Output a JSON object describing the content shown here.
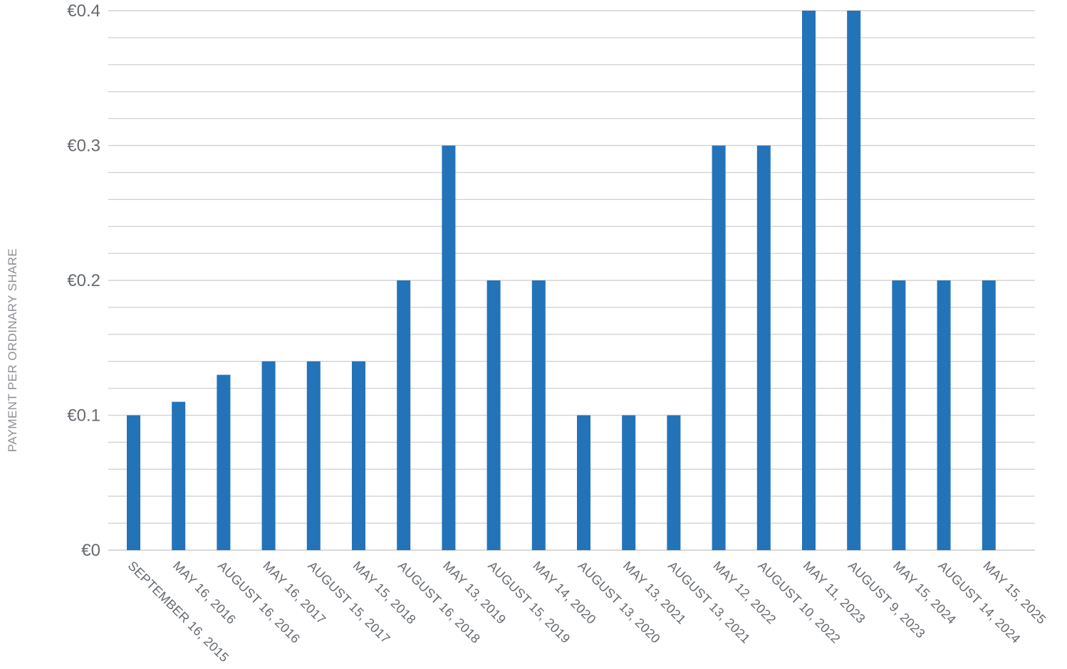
{
  "chart_data": {
    "type": "bar",
    "title": "",
    "xlabel": "",
    "ylabel": "PAYMENT PER ORDINARY SHARE",
    "ylim": [
      0,
      0.4
    ],
    "y_ticks": [
      {
        "value": 0,
        "label": "€0"
      },
      {
        "value": 0.1,
        "label": "€0.1"
      },
      {
        "value": 0.2,
        "label": "€0.2"
      },
      {
        "value": 0.3,
        "label": "€0.3"
      },
      {
        "value": 0.4,
        "label": "€0.4"
      }
    ],
    "grid": true,
    "grid_step": 0.02,
    "bar_color": "#2373b9",
    "categories": [
      "SEPTEMBER 16, 2015",
      "MAY 16, 2016",
      "AUGUST 16, 2016",
      "MAY 16, 2017",
      "AUGUST 15, 2017",
      "MAY 15, 2018",
      "AUGUST 16, 2018",
      "MAY 13, 2019",
      "AUGUST 15, 2019",
      "MAY 14, 2020",
      "AUGUST 13, 2020",
      "MAY 13, 2021",
      "AUGUST 13, 2021",
      "MAY 12, 2022",
      "AUGUST 10, 2022",
      "MAY 11, 2023",
      "AUGUST 9, 2023",
      "MAY 15, 2024",
      "AUGUST 14, 2024",
      "MAY 15, 2025"
    ],
    "values": [
      0.1,
      0.11,
      0.13,
      0.14,
      0.14,
      0.14,
      0.2,
      0.3,
      0.2,
      0.2,
      0.1,
      0.1,
      0.1,
      0.3,
      0.3,
      0.4,
      0.4,
      0.2,
      0.2,
      0.2
    ]
  }
}
